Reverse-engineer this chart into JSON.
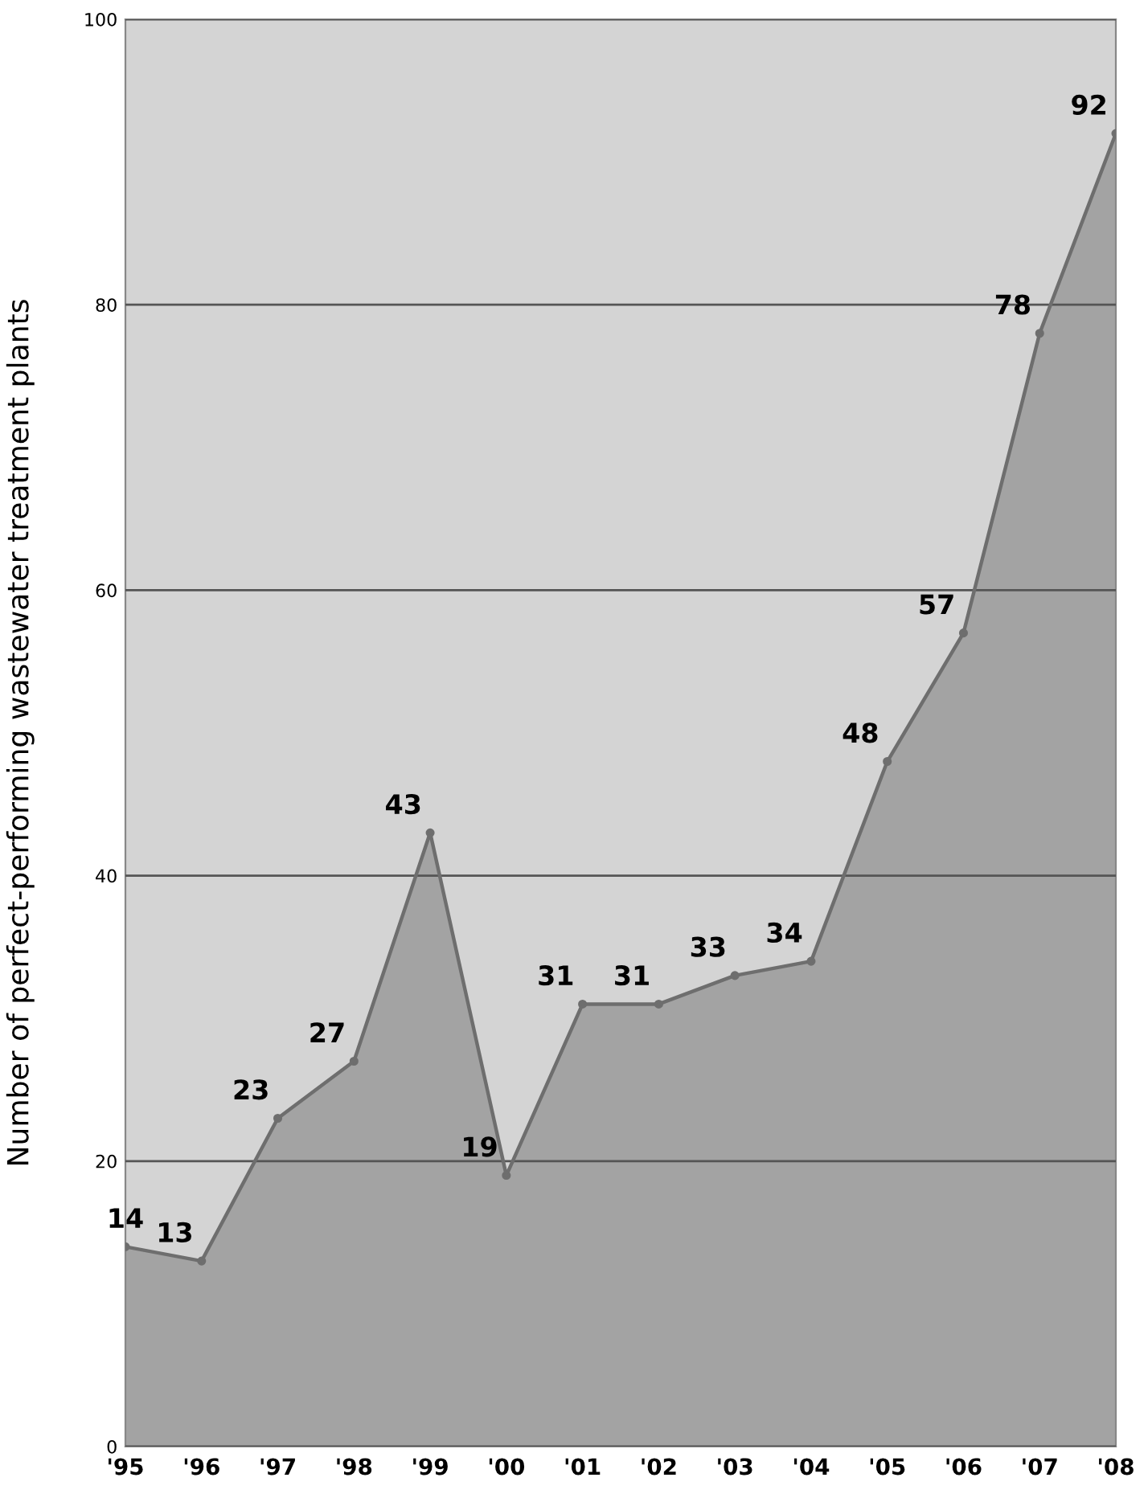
{
  "chart_data": {
    "type": "area",
    "ylabel": "Number of perfect-performing wastewater treatment plants",
    "categories": [
      "'95",
      "'96",
      "'97",
      "'98",
      "'99",
      "'00",
      "'01",
      "'02",
      "'03",
      "'04",
      "'05",
      "'06",
      "'07",
      "'08"
    ],
    "values": [
      14,
      13,
      23,
      27,
      43,
      19,
      31,
      31,
      33,
      34,
      48,
      57,
      78,
      92
    ],
    "color": "#a3a3a3",
    "ylim": [
      0,
      100
    ],
    "yticks": [
      0,
      20,
      40,
      60,
      80,
      100
    ],
    "grid": "y",
    "data_labels": true,
    "marker": "circle"
  }
}
